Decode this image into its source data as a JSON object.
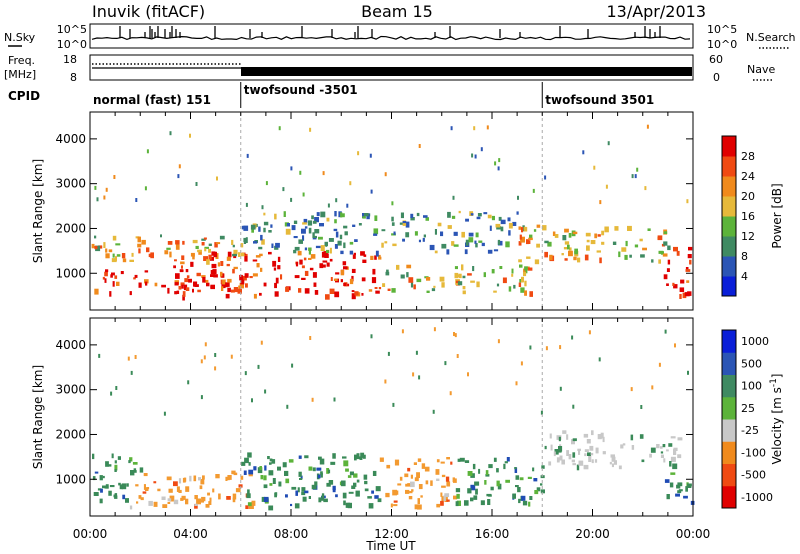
{
  "header": {
    "station": "Inuvik (fitACF)",
    "beam": "Beam 15",
    "date": "13/Apr/2013"
  },
  "left_labels": {
    "nsky": "N.Sky",
    "freq": "Freq.",
    "freq_unit": "[MHz]",
    "cpid": "CPID"
  },
  "right_labels": {
    "nsearch": "N.Search",
    "nave": "Nave"
  },
  "noise_panel": {
    "left_ticks": [
      "10^5",
      "10^0"
    ],
    "right_ticks": [
      "10^5",
      "10^0"
    ]
  },
  "freq_panel": {
    "left_ticks": [
      "18",
      "8"
    ],
    "right_ticks": [
      "60",
      "0"
    ]
  },
  "cpid": [
    {
      "label": "normal (fast) 151",
      "start_hour": 0
    },
    {
      "label": "twofsound -3501",
      "start_hour": 6
    },
    {
      "label": "twofsound 3501",
      "start_hour": 18
    }
  ],
  "colors": {
    "power": [
      "#0a1fd8",
      "#2b55b5",
      "#3f8a62",
      "#5cb33a",
      "#e6b93a",
      "#f08a1c",
      "#f04a12",
      "#e00000"
    ],
    "velocity": [
      "#e00000",
      "#f04a12",
      "#f08a1c",
      "#c8c8c8",
      "#5cb33a",
      "#3f8a62",
      "#2b55b5",
      "#0a1fd8"
    ],
    "velocity_main": {
      "negative": "#f39a30",
      "positive": "#3a8a58",
      "grey": "#c8c8c8",
      "blue": "#1f4bb4"
    }
  },
  "chart_data": [
    {
      "type": "heatmap",
      "title": "Power",
      "xlabel": "",
      "ylabel": "Slant Range [km]",
      "x_ticks": [
        "00:00",
        "04:00",
        "08:00",
        "12:00",
        "16:00",
        "20:00",
        "00:00"
      ],
      "y_ticks": [
        1000,
        2000,
        3000,
        4000
      ],
      "xlim_hours": [
        0,
        24
      ],
      "ylim": [
        180,
        4600
      ],
      "colorbar": {
        "label": "Power [dB]",
        "ticks": [
          4,
          8,
          12,
          16,
          20,
          24,
          28
        ]
      },
      "regions": [
        {
          "t0": 0.0,
          "t1": 6.0,
          "r0": 600,
          "r1": 1100,
          "level": "strong"
        },
        {
          "t0": 3.0,
          "t1": 11.5,
          "r0": 500,
          "r1": 1500,
          "level": "strong"
        },
        {
          "t0": 11.5,
          "t1": 17.5,
          "r0": 600,
          "r1": 1200,
          "level": "medium"
        },
        {
          "t0": 0.0,
          "t1": 6.0,
          "r0": 1300,
          "r1": 1900,
          "level": "medium"
        },
        {
          "t0": 6.0,
          "t1": 17.0,
          "r0": 1500,
          "r1": 2400,
          "level": "weak"
        },
        {
          "t0": 17.0,
          "t1": 23.0,
          "r0": 1300,
          "r1": 2100,
          "level": "medium"
        },
        {
          "t0": 22.8,
          "t1": 24.0,
          "r0": 500,
          "r1": 1600,
          "level": "strong"
        }
      ]
    },
    {
      "type": "heatmap",
      "title": "Velocity",
      "xlabel": "Time UT",
      "ylabel": "Slant Range [km]",
      "x_ticks": [
        "00:00",
        "04:00",
        "08:00",
        "12:00",
        "16:00",
        "20:00",
        "00:00"
      ],
      "y_ticks": [
        1000,
        2000,
        3000,
        4000
      ],
      "xlim_hours": [
        0,
        24
      ],
      "ylim": [
        180,
        4600
      ],
      "colorbar": {
        "label": "Velocity [m s^-1]",
        "ticks": [
          "1000",
          "500",
          "100",
          "25",
          "-25",
          "-100",
          "-500",
          "-1000"
        ]
      },
      "regions": [
        {
          "t0": 0.0,
          "t1": 2.0,
          "r0": 500,
          "r1": 1600,
          "level": "positive"
        },
        {
          "t0": 1.5,
          "t1": 6.5,
          "r0": 400,
          "r1": 1200,
          "level": "negative"
        },
        {
          "t0": 6.0,
          "t1": 11.5,
          "r0": 400,
          "r1": 1600,
          "level": "positive"
        },
        {
          "t0": 11.5,
          "t1": 14.5,
          "r0": 400,
          "r1": 1500,
          "level": "negative"
        },
        {
          "t0": 14.5,
          "t1": 18.0,
          "r0": 500,
          "r1": 1500,
          "level": "positive"
        },
        {
          "t0": 18.0,
          "t1": 23.5,
          "r0": 1300,
          "r1": 2100,
          "level": "grey"
        },
        {
          "t0": 22.8,
          "t1": 24.0,
          "r0": 500,
          "r1": 1400,
          "level": "positive"
        }
      ]
    }
  ]
}
